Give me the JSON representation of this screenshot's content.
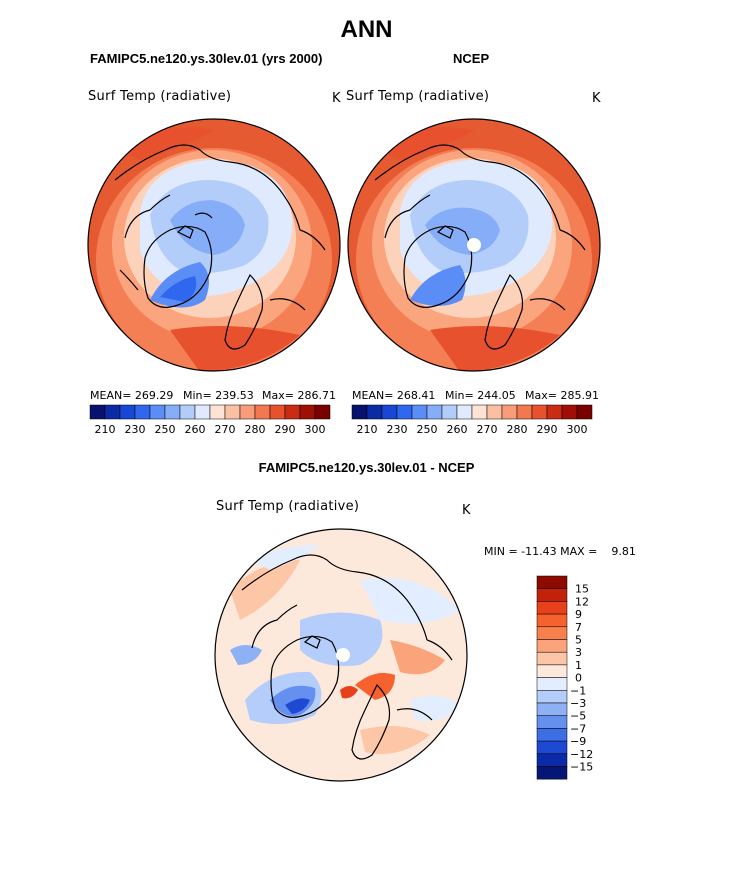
{
  "title": "ANN",
  "panels": {
    "left": {
      "case_label": "FAMIPC5.ne120.ys.30lev.01 (yrs 2000)",
      "variable": "Surf Temp (radiative)",
      "units": "K",
      "stats": {
        "mean": "MEAN= 269.29",
        "min": "Min= 239.53",
        "max": "Max= 286.71"
      }
    },
    "right": {
      "case_label": "NCEP",
      "variable": "Surf Temp (radiative)",
      "units": "K",
      "stats": {
        "mean": "MEAN= 268.41",
        "min": "Min= 244.05",
        "max": "Max= 285.91"
      }
    },
    "diff": {
      "case_label": "FAMIPC5.ne120.ys.30lev.01 - NCEP",
      "variable": "Surf Temp (radiative)",
      "units": "K",
      "minmax": "MIN = -11.43 MAX =    9.81"
    }
  },
  "chart_data": [
    {
      "type": "heatmap",
      "projection": "north polar stereographic",
      "title": "Surf Temp (radiative)",
      "case": "FAMIPC5.ne120.ys.30lev.01 (yrs 2000)",
      "units": "K",
      "mean": 269.29,
      "min": 239.53,
      "max": 286.71,
      "colorbar": {
        "levels": [
          210,
          220,
          230,
          240,
          250,
          255,
          260,
          265,
          270,
          275,
          280,
          285,
          290,
          295,
          300
        ],
        "tick_labels": [
          "210",
          "230",
          "250",
          "260",
          "270",
          "280",
          "290",
          "300"
        ],
        "colors": [
          "#08126e",
          "#0b2ba6",
          "#1747d4",
          "#2f68ee",
          "#5a8df5",
          "#86aef8",
          "#b3cdfb",
          "#dfeaff",
          "#fde3d4",
          "#fbbfa2",
          "#f89c79",
          "#f3774f",
          "#e8512d",
          "#c92b13",
          "#a00f06",
          "#7a0000"
        ]
      }
    },
    {
      "type": "heatmap",
      "projection": "north polar stereographic",
      "title": "Surf Temp (radiative)",
      "case": "NCEP",
      "units": "K",
      "mean": 268.41,
      "min": 244.05,
      "max": 285.91,
      "colorbar": {
        "levels": [
          210,
          220,
          230,
          240,
          250,
          255,
          260,
          265,
          270,
          275,
          280,
          285,
          290,
          295,
          300
        ],
        "tick_labels": [
          "210",
          "230",
          "250",
          "260",
          "270",
          "280",
          "290",
          "300"
        ],
        "colors": [
          "#08126e",
          "#0b2ba6",
          "#1747d4",
          "#2f68ee",
          "#5a8df5",
          "#86aef8",
          "#b3cdfb",
          "#dfeaff",
          "#fde3d4",
          "#fbbfa2",
          "#f89c79",
          "#f3774f",
          "#e8512d",
          "#c92b13",
          "#a00f06",
          "#7a0000"
        ]
      }
    },
    {
      "type": "heatmap",
      "projection": "north polar stereographic",
      "title": "Surf Temp (radiative)",
      "case": "FAMIPC5.ne120.ys.30lev.01 - NCEP",
      "units": "K",
      "min": -11.43,
      "max": 9.81,
      "colorbar": {
        "tick_labels": [
          "15",
          "12",
          "9",
          "7",
          "5",
          "3",
          "1",
          "0",
          "-1",
          "-3",
          "-5",
          "-7",
          "-9",
          "-12",
          "-15"
        ],
        "colors": [
          "#8c0a00",
          "#c42208",
          "#e8401a",
          "#f5622e",
          "#f8804c",
          "#fba37a",
          "#fdc6a6",
          "#fde8dc",
          "#e2eeff",
          "#b4cdfa",
          "#8eb1f6",
          "#6690f0",
          "#3e6ee6",
          "#1e49d2",
          "#0b2aa8",
          "#061674"
        ]
      }
    }
  ]
}
